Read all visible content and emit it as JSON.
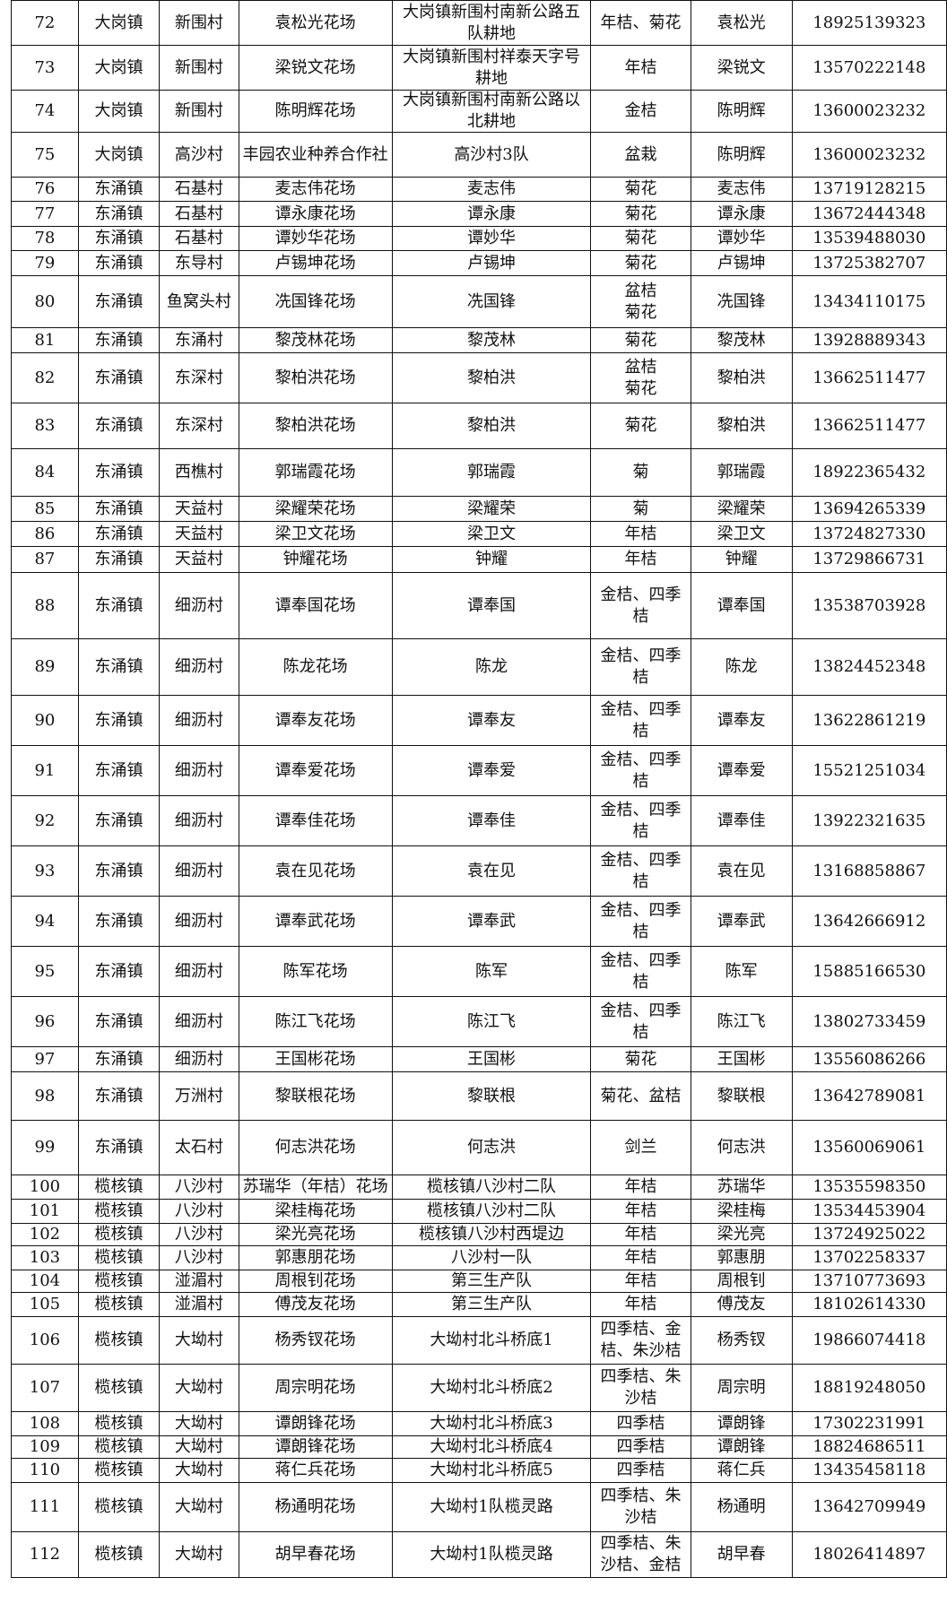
{
  "table": {
    "rows": [
      [
        "72",
        "大岗镇",
        "新围村",
        "袁松光花场",
        "大岗镇新围村南新公路五队耕地",
        "年桔、菊花",
        "袁松光",
        "18925139323"
      ],
      [
        "73",
        "大岗镇",
        "新围村",
        "梁锐文花场",
        "大岗镇新围村祥泰天字号耕地",
        "年桔",
        "梁锐文",
        "13570222148"
      ],
      [
        "74",
        "大岗镇",
        "新围村",
        "陈明辉花场",
        "大岗镇新围村南新公路以北耕地",
        "金桔",
        "陈明辉",
        "13600023232"
      ],
      [
        "75",
        "大岗镇",
        "高沙村",
        "丰园农业种养合作社",
        "高沙村3队",
        "盆栽",
        "陈明辉",
        "13600023232"
      ],
      [
        "76",
        "东涌镇",
        "石基村",
        "麦志伟花场",
        "麦志伟",
        "菊花",
        "麦志伟",
        "13719128215"
      ],
      [
        "77",
        "东涌镇",
        "石基村",
        "谭永康花场",
        "谭永康",
        "菊花",
        "谭永康",
        "13672444348"
      ],
      [
        "78",
        "东涌镇",
        "石基村",
        "谭妙华花场",
        "谭妙华",
        "菊花",
        "谭妙华",
        "13539488030"
      ],
      [
        "79",
        "东涌镇",
        "东导村",
        "卢锡坤花场",
        "卢锡坤",
        "菊花",
        "卢锡坤",
        "13725382707"
      ],
      [
        "80",
        "东涌镇",
        "鱼窝头村",
        "冼国锋花场",
        "冼国锋",
        "盆桔\n菊花",
        "冼国锋",
        "13434110175"
      ],
      [
        "81",
        "东涌镇",
        "东涌村",
        "黎茂林花场",
        "黎茂林",
        "菊花",
        "黎茂林",
        "13928889343"
      ],
      [
        "82",
        "东涌镇",
        "东深村",
        "黎柏洪花场",
        "黎柏洪",
        "盆桔\n菊花",
        "黎柏洪",
        "13662511477"
      ],
      [
        "83",
        "东涌镇",
        "东深村",
        "黎柏洪花场",
        "黎柏洪",
        "菊花",
        "黎柏洪",
        "13662511477"
      ],
      [
        "84",
        "东涌镇",
        "西樵村",
        "郭瑞霞花场",
        "郭瑞霞",
        "菊",
        "郭瑞霞",
        "18922365432"
      ],
      [
        "85",
        "东涌镇",
        "天益村",
        "梁耀荣花场",
        "梁耀荣",
        "菊",
        "梁耀荣",
        "13694265339"
      ],
      [
        "86",
        "东涌镇",
        "天益村",
        "梁卫文花场",
        "梁卫文",
        "年桔",
        "梁卫文",
        "13724827330"
      ],
      [
        "87",
        "东涌镇",
        "天益村",
        "钟耀花场",
        "钟耀",
        "年桔",
        "钟耀",
        "13729866731"
      ],
      [
        "88",
        "东涌镇",
        "细沥村",
        "谭奉国花场",
        "谭奉国",
        "金桔、四季桔",
        "谭奉国",
        "13538703928"
      ],
      [
        "89",
        "东涌镇",
        "细沥村",
        "陈龙花场",
        "陈龙",
        "金桔、四季桔",
        "陈龙",
        "13824452348"
      ],
      [
        "90",
        "东涌镇",
        "细沥村",
        "谭奉友花场",
        "谭奉友",
        "金桔、四季桔",
        "谭奉友",
        "13622861219"
      ],
      [
        "91",
        "东涌镇",
        "细沥村",
        "谭奉爱花场",
        "谭奉爱",
        "金桔、四季桔",
        "谭奉爱",
        "15521251034"
      ],
      [
        "92",
        "东涌镇",
        "细沥村",
        "谭奉佳花场",
        "谭奉佳",
        "金桔、四季桔",
        "谭奉佳",
        "13922321635"
      ],
      [
        "93",
        "东涌镇",
        "细沥村",
        "袁在见花场",
        "袁在见",
        "金桔、四季桔",
        "袁在见",
        "13168858867"
      ],
      [
        "94",
        "东涌镇",
        "细沥村",
        "谭奉武花场",
        "谭奉武",
        "金桔、四季桔",
        "谭奉武",
        "13642666912"
      ],
      [
        "95",
        "东涌镇",
        "细沥村",
        "陈军花场",
        "陈军",
        "金桔、四季桔",
        "陈军",
        "15885166530"
      ],
      [
        "96",
        "东涌镇",
        "细沥村",
        "陈江飞花场",
        "陈江飞",
        "金桔、四季桔",
        "陈江飞",
        "13802733459"
      ],
      [
        "97",
        "东涌镇",
        "细沥村",
        "王国彬花场",
        "王国彬",
        "菊花",
        "王国彬",
        "13556086266"
      ],
      [
        "98",
        "东涌镇",
        "万洲村",
        "黎联根花场",
        "黎联根",
        "菊花、盆桔",
        "黎联根",
        "13642789081"
      ],
      [
        "99",
        "东涌镇",
        "太石村",
        "何志洪花场",
        "何志洪",
        "剑兰",
        "何志洪",
        "13560069061"
      ],
      [
        "100",
        "榄核镇",
        "八沙村",
        "苏瑞华（年桔）花场",
        "榄核镇八沙村二队",
        "年桔",
        "苏瑞华",
        "13535598350"
      ],
      [
        "101",
        "榄核镇",
        "八沙村",
        "梁桂梅花场",
        "榄核镇八沙村二队",
        "年桔",
        "梁桂梅",
        "13534453904"
      ],
      [
        "102",
        "榄核镇",
        "八沙村",
        "梁光亮花场",
        "榄核镇八沙村西堤边",
        "年桔",
        "梁光亮",
        "13724925022"
      ],
      [
        "103",
        "榄核镇",
        "八沙村",
        "郭惠朋花场",
        "八沙村一队",
        "年桔",
        "郭惠朋",
        "13702258337"
      ],
      [
        "104",
        "榄核镇",
        "湴湄村",
        "周根钊花场",
        "第三生产队",
        "年桔",
        "周根钊",
        "13710773693"
      ],
      [
        "105",
        "榄核镇",
        "湴湄村",
        "傅茂友花场",
        "第三生产队",
        "年桔",
        "傅茂友",
        "18102614330"
      ],
      [
        "106",
        "榄核镇",
        "大坳村",
        "杨秀钗花场",
        "大坳村北斗桥底1",
        "四季桔、金桔、朱沙桔",
        "杨秀钗",
        "19866074418"
      ],
      [
        "107",
        "榄核镇",
        "大坳村",
        "周宗明花场",
        "大坳村北斗桥底2",
        "四季桔、朱沙桔",
        "周宗明",
        "18819248050"
      ],
      [
        "108",
        "榄核镇",
        "大坳村",
        "谭朗锋花场",
        "大坳村北斗桥底3",
        "四季桔",
        "谭朗锋",
        "17302231991"
      ],
      [
        "109",
        "榄核镇",
        "大坳村",
        "谭朗锋花场",
        "大坳村北斗桥底4",
        "四季桔",
        "谭朗锋",
        "18824686511"
      ],
      [
        "110",
        "榄核镇",
        "大坳村",
        "蒋仁兵花场",
        "大坳村北斗桥底5",
        "四季桔",
        "蒋仁兵",
        "13435458118"
      ],
      [
        "111",
        "榄核镇",
        "大坳村",
        "杨通明花场",
        "大坳村1队榄灵路",
        "四季桔、朱沙桔",
        "杨通明",
        "13642709949"
      ],
      [
        "112",
        "榄核镇",
        "大坳村",
        "胡早春花场",
        "大坳村1队榄灵路",
        "四季桔、朱沙桔、金桔",
        "胡早春",
        "18026414897"
      ]
    ]
  }
}
